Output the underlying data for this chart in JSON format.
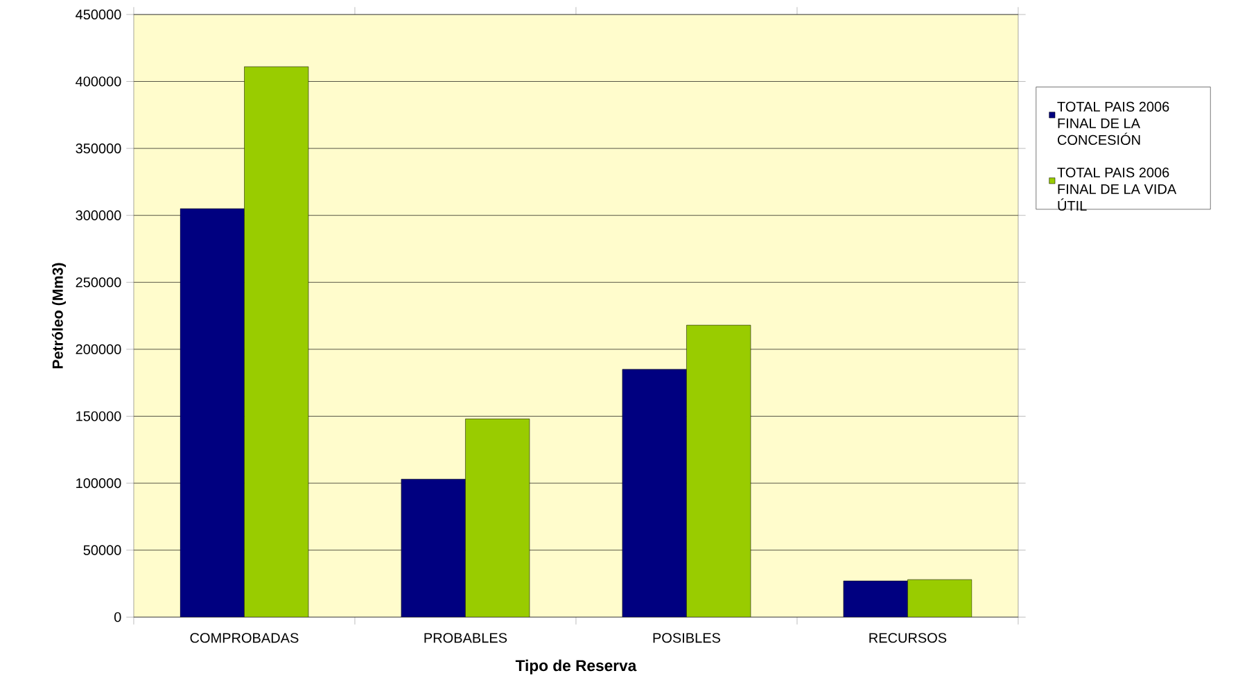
{
  "chart_data": {
    "type": "bar",
    "xlabel": "Tipo de Reserva",
    "ylabel": "Petróleo (Mm3)",
    "categories": [
      "COMPROBADAS",
      "PROBABLES",
      "POSIBLES",
      "RECURSOS"
    ],
    "series": [
      {
        "name": "TOTAL PAIS 2006 FINAL DE LA CONCESIÓN",
        "color": "#000080",
        "values": [
          305000,
          103000,
          185000,
          27000
        ]
      },
      {
        "name": "TOTAL PAIS 2006 FINAL DE LA VIDA ÚTIL",
        "color": "#99cc00",
        "values": [
          411000,
          148000,
          218000,
          28000
        ]
      }
    ],
    "ylim": [
      0,
      450000
    ],
    "yticks": [
      0,
      50000,
      100000,
      150000,
      200000,
      250000,
      300000,
      350000,
      400000,
      450000
    ],
    "grid": "y",
    "legend": "right"
  }
}
